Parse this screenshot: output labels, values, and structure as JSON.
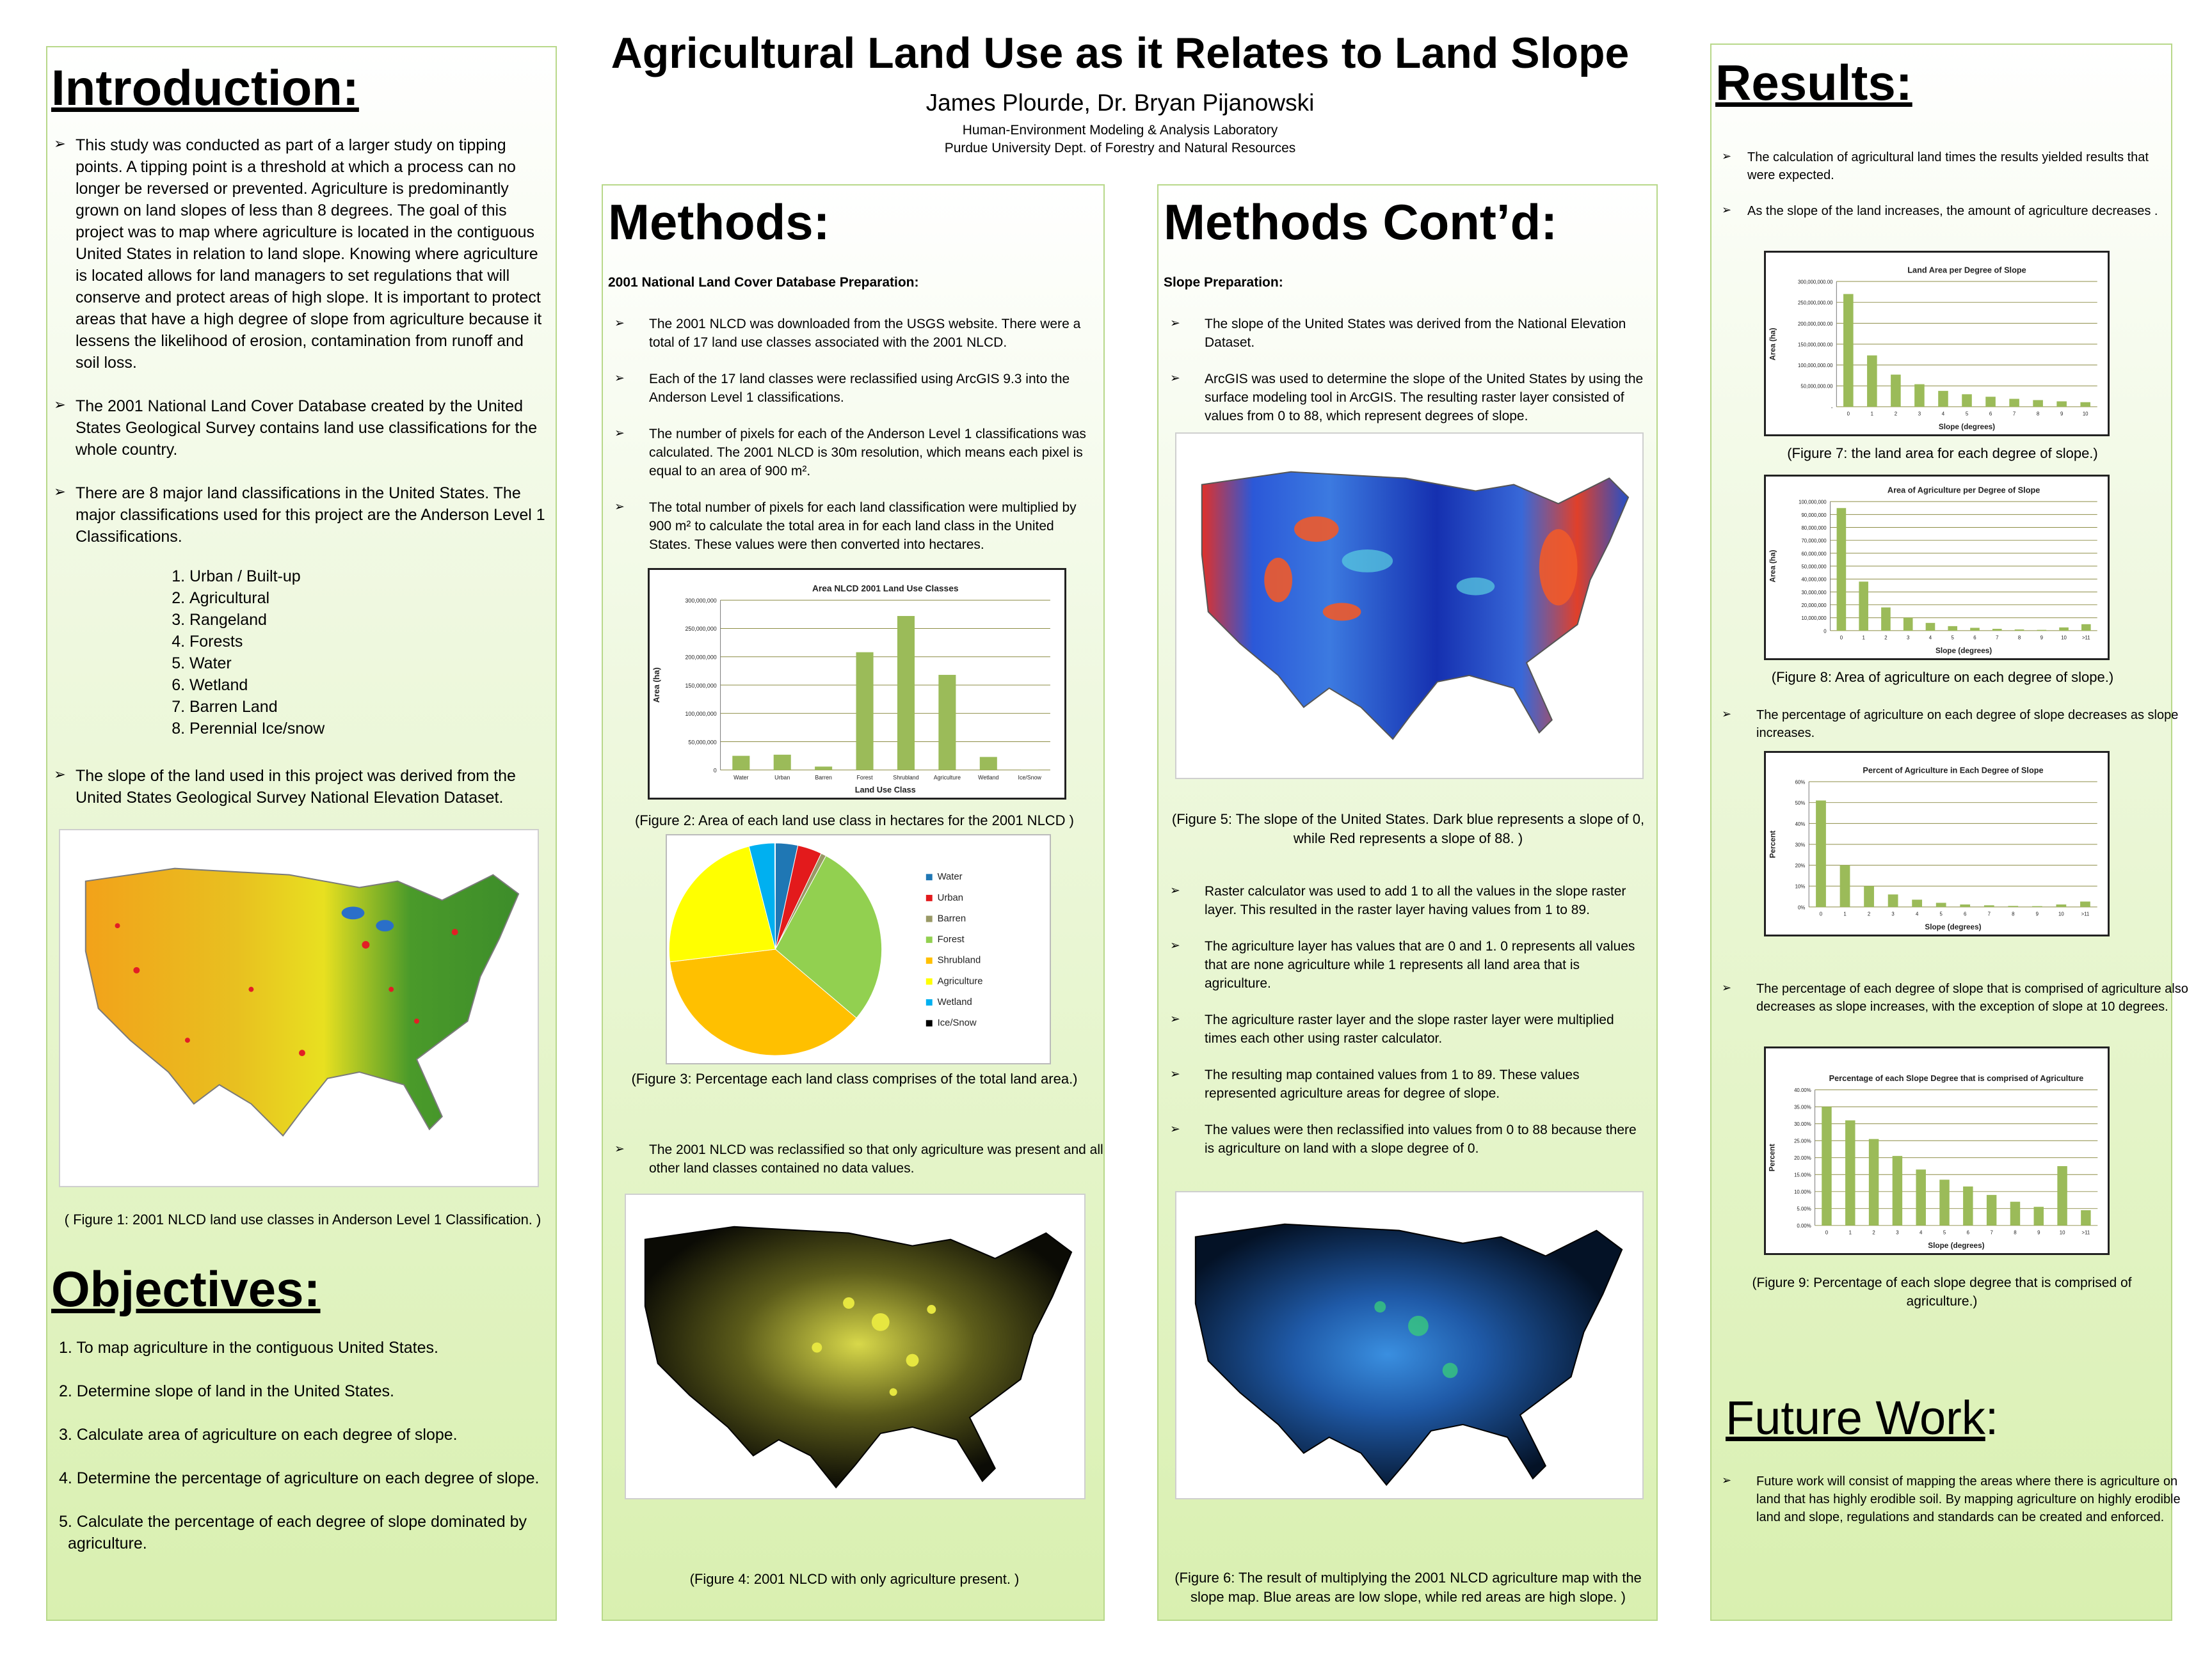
{
  "header": {
    "title": "Agricultural Land Use as it Relates to Land Slope",
    "authors": "James Plourde, Dr. Bryan Pijanowski",
    "lab": "Human-Environment Modeling & Analysis Laboratory",
    "dept": "Purdue University Dept. of Forestry and Natural Resources"
  },
  "intro": {
    "heading": "Introduction:",
    "bullets": [
      "This study was conducted as part of a larger study on tipping points. A tipping point is a threshold at which a process can no longer be reversed or prevented. Agriculture is predominantly grown on land slopes of less than 8 degrees. The goal of this project was to map where agriculture is located in the contiguous United States in relation to land slope.  Knowing where agriculture is located allows for land managers to set regulations that will conserve and protect areas of high slope.  It is important to protect areas that have a high degree of slope from agriculture because it lessens the likelihood of erosion, contamination from runoff and soil loss.",
      "The 2001 National Land Cover Database created by the United States Geological Survey contains land use classifications for the whole country.",
      "There are 8 major land classifications in the United States.  The major classifications used for this project are the Anderson Level 1 Classifications."
    ],
    "classes": [
      "Urban / Built-up",
      "Agricultural",
      "Rangeland",
      "Forests",
      "Water",
      "Wetland",
      "Barren Land",
      "Perennial Ice/snow"
    ],
    "bullet_last": "The slope of the land used in this project was derived from the United States Geological Survey National Elevation Dataset.",
    "fig1_caption": "( Figure 1:  2001 NLCD land use classes in Anderson Level 1 Classification. )"
  },
  "objectives": {
    "heading": "Objectives:",
    "items": [
      "1. To map agriculture in the contiguous United States.",
      "2. Determine slope of land in the United States.",
      "3. Calculate area of agriculture on each degree of slope.",
      "4. Determine the percentage of agriculture on each degree of slope.",
      "5.  Calculate the percentage of each degree of slope dominated by agriculture."
    ]
  },
  "methods": {
    "heading": "Methods:",
    "subheading": "2001 National Land Cover Database  Preparation:",
    "bullets": [
      "The 2001 NLCD was downloaded from the USGS website.  There were a total of 17 land use classes associated with the 2001 NLCD.",
      "Each of the 17 land classes were reclassified using ArcGIS 9.3  into the Anderson Level 1 classifications.",
      "The number of pixels for each of the Anderson Level 1 classifications was calculated.  The 2001 NLCD is 30m resolution, which means each pixel is equal to an area of 900 m².",
      "The total number of pixels for each  land classification were multiplied by 900 m² to calculate the total area in for each land class  in the United States.  These values were then converted into hectares."
    ],
    "fig2_caption": "(Figure 2:  Area  of each land use class in hectares for the 2001 NLCD )",
    "fig3_caption": "(Figure 3: Percentage each land class comprises of the total land area.)",
    "bullet_reclass": "The 2001 NLCD was reclassified so that only agriculture was present and all other land classes contained no data values.",
    "fig4_caption": "(Figure 4: 2001 NLCD with only agriculture present. )"
  },
  "methods2": {
    "heading": "Methods Cont’d:",
    "subheading": "Slope Preparation:",
    "bullets": [
      "The slope of the United States was derived from the National Elevation Dataset.",
      "ArcGIS was used to determine the slope of the United States by using the surface modeling tool in ArcGIS.  The resulting raster layer consisted of values from 0 to 88, which represent degrees of slope."
    ],
    "fig5_caption": "(Figure 5: The slope of the United States.  Dark blue represents a slope of 0, while Red represents a slope of 88. )",
    "bullets2": [
      "Raster calculator was used to add 1 to all the values in the slope raster layer. This resulted in the raster layer having values from 1 to 89.",
      "The agriculture layer has values that are 0 and 1.  0 represents all values that are none agriculture while 1 represents all land area that is agriculture.",
      "The agriculture raster layer and the slope raster layer were multiplied times each other using raster calculator.",
      "The resulting map contained values from 1 to 89.  These values represented agriculture  areas for  degree of slope.",
      "The values were then reclassified into values from 0 to 88 because there is agriculture on land with a slope degree of 0."
    ],
    "fig6_caption": "(Figure 6: The result of multiplying the 2001 NLCD agriculture map with the slope map.  Blue areas are low slope, while red areas are high slope. )"
  },
  "results": {
    "heading": "Results:",
    "bullets": [
      "The calculation of agricultural land times the results yielded results that were expected.",
      "As the slope of the land increases, the amount of agriculture decreases ."
    ],
    "fig7_caption": "(Figure 7: the land area for each degree of slope.)",
    "fig8_caption": "(Figure 8: Area of agriculture on each degree of slope.)",
    "bullet3": "The percentage of agriculture on each degree of slope decreases as slope increases.",
    "bullet4": "The percentage of each degree of slope that is comprised of agriculture also decreases as slope increases, with the exception of slope at 10 degrees.",
    "fig9_caption": "(Figure 9: Percentage of each slope degree that is comprised of agriculture.)"
  },
  "future": {
    "heading": "Future Work",
    "colon": ":",
    "bullet": "Future work will consist of mapping the areas where there is agriculture on land that has highly erodible soil.  By mapping agriculture on highly erodible land and slope, regulations and standards can be created and enforced."
  },
  "colors": {
    "bar": "#9bbb59",
    "panel_border": "#b8d88a",
    "grid": "#8c8c44"
  },
  "chart_data": [
    {
      "id": "fig2",
      "type": "bar",
      "title": "Area NLCD 2001 Land Use Classes",
      "xlabel": "Land Use Class",
      "ylabel": "Area (ha)",
      "categories": [
        "Water",
        "Urban",
        "Barren",
        "Forest",
        "Shrubland",
        "Agriculture",
        "Wetland",
        "Ice/Snow"
      ],
      "values": [
        25000000,
        27000000,
        6000000,
        208000000,
        272000000,
        168000000,
        23000000,
        50000
      ],
      "ylim": [
        0,
        300000000
      ],
      "yticks": [
        "300,000,000",
        "250,000,000",
        "200,000,000",
        "150,000,000",
        "100,000,000",
        "50,000,000",
        "0"
      ]
    },
    {
      "id": "fig3",
      "type": "pie",
      "categories": [
        "Water",
        "Urban",
        "Barren",
        "Forest",
        "Shrubland",
        "Agriculture",
        "Wetland",
        "Ice/Snow"
      ],
      "values": [
        3.4,
        3.7,
        0.8,
        28.3,
        36.9,
        22.9,
        3.9,
        0.1
      ],
      "colors": [
        "#1f77b4",
        "#e31a1c",
        "#999966",
        "#92d050",
        "#ffc000",
        "#ffff00",
        "#00b0f0",
        "#000000"
      ],
      "legend": "right"
    },
    {
      "id": "fig7",
      "type": "bar",
      "title": "Land Area per Degree of Slope",
      "xlabel": "Slope (degrees)",
      "ylabel": "Area (ha)",
      "categories": [
        "0",
        "1",
        "2",
        "3",
        "4",
        "5",
        "6",
        "7",
        "8",
        "9",
        "10"
      ],
      "values": [
        270000000,
        123000000,
        77000000,
        54000000,
        38000000,
        30000000,
        24000000,
        19000000,
        16000000,
        13000000,
        11000000
      ],
      "ylim": [
        0,
        300000000
      ],
      "yticks": [
        "300,000,000.00",
        "250,000,000.00",
        "200,000,000.00",
        "150,000,000.00",
        "100,000,000.00",
        "50,000,000.00",
        "-"
      ]
    },
    {
      "id": "fig8",
      "type": "bar",
      "title": "Area of Agriculture per Degree of Slope",
      "xlabel": "Slope (degrees)",
      "ylabel": "Area (ha)",
      "categories": [
        "0",
        "1",
        "2",
        "3",
        "4",
        "5",
        "6",
        "7",
        "8",
        "9",
        "10",
        ">11"
      ],
      "values": [
        95000000,
        38000000,
        18000000,
        10000000,
        6000000,
        3500000,
        2200000,
        1400000,
        900000,
        600000,
        2500000,
        5000000
      ],
      "ylim": [
        0,
        100000000
      ],
      "yticks": [
        "100,000,000",
        "90,000,000",
        "80,000,000",
        "70,000,000",
        "60,000,000",
        "50,000,000",
        "40,000,000",
        "30,000,000",
        "20,000,000",
        "10,000,000",
        "0"
      ]
    },
    {
      "id": "fig9a",
      "type": "bar",
      "title": "Percent of Agriculture in Each Degree of Slope",
      "xlabel": "Slope (degrees)",
      "ylabel": "Percent",
      "categories": [
        "0",
        "1",
        "2",
        "3",
        "4",
        "5",
        "6",
        "7",
        "8",
        "9",
        "10",
        ">11"
      ],
      "values": [
        51,
        20,
        10,
        6,
        3.5,
        2,
        1.2,
        0.8,
        0.5,
        0.4,
        1.2,
        2.6
      ],
      "ylim": [
        0,
        60
      ],
      "yticks": [
        "60%",
        "50%",
        "40%",
        "30%",
        "20%",
        "10%",
        "0%"
      ]
    },
    {
      "id": "fig9b",
      "type": "bar",
      "title": "Percentage of each Slope Degree that is comprised of Agriculture",
      "xlabel": "Slope (degrees)",
      "ylabel": "Percent",
      "categories": [
        "0",
        "1",
        "2",
        "3",
        "4",
        "5",
        "6",
        "7",
        "8",
        "9",
        "10",
        ">11"
      ],
      "values": [
        35,
        31,
        25.5,
        20.5,
        16.5,
        13.5,
        11.5,
        9,
        7,
        5.5,
        17.5,
        4.5
      ],
      "ylim": [
        0,
        40
      ],
      "yticks": [
        "40.00%",
        "35.00%",
        "30.00%",
        "25.00%",
        "20.00%",
        "15.00%",
        "10.00%",
        "5.00%",
        "0.00%"
      ]
    }
  ]
}
